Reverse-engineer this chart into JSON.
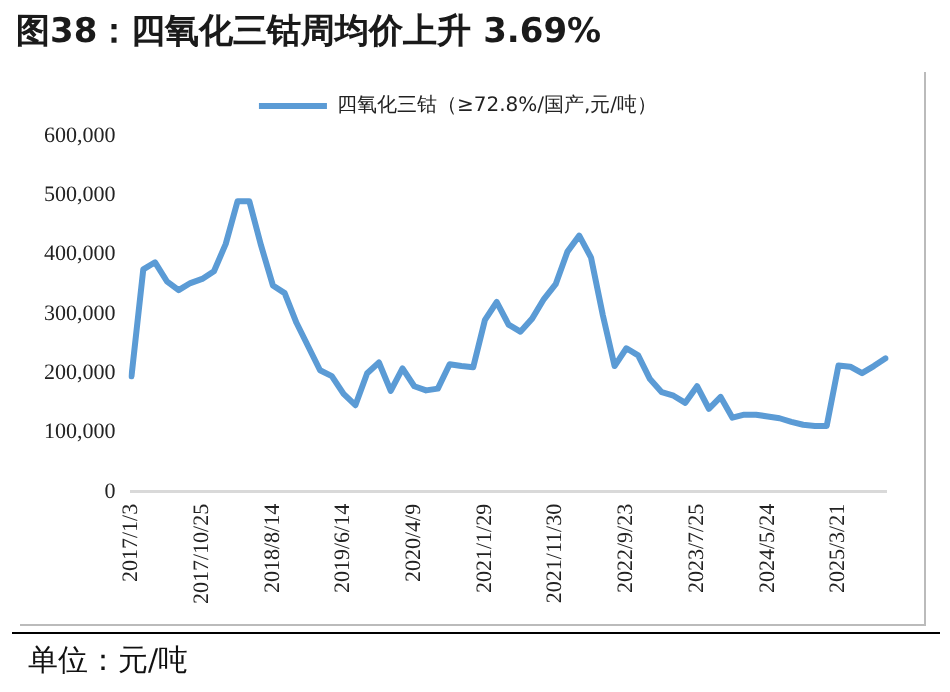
{
  "chart_data": {
    "type": "line",
    "title": "图38：四氧化三钴周均价上升 3.69%",
    "categories": [
      "2017/1/3",
      null,
      null,
      null,
      null,
      null,
      "2017/10/25",
      null,
      null,
      null,
      null,
      null,
      "2018/8/14",
      null,
      null,
      null,
      null,
      null,
      "2019/6/14",
      null,
      null,
      null,
      null,
      null,
      "2020/4/9",
      null,
      null,
      null,
      null,
      null,
      "2021/1/29",
      null,
      null,
      null,
      null,
      null,
      "2021/11/30",
      null,
      null,
      null,
      null,
      null,
      "2022/9/23",
      null,
      null,
      null,
      null,
      null,
      "2023/7/25",
      null,
      null,
      null,
      null,
      null,
      "2024/5/24",
      null,
      null,
      null,
      null,
      null,
      "2025/3/21",
      null,
      null,
      null,
      null
    ],
    "series": [
      {
        "name": "四氧化三钴（≥72.8%/国产,元/吨）",
        "color": "#5b9bd5",
        "values": [
          195000,
          375000,
          387000,
          355000,
          340000,
          352000,
          359000,
          372000,
          418000,
          490000,
          490000,
          415000,
          348000,
          335000,
          285000,
          245000,
          205000,
          195000,
          165000,
          146000,
          200000,
          218000,
          170000,
          208000,
          178000,
          171000,
          174000,
          215000,
          212000,
          210000,
          290000,
          320000,
          282000,
          270000,
          292000,
          325000,
          350000,
          405000,
          432000,
          395000,
          298000,
          212000,
          242000,
          230000,
          190000,
          168000,
          162000,
          150000,
          178000,
          140000,
          160000,
          125000,
          130000,
          130000,
          127000,
          124000,
          118000,
          113000,
          111000,
          111000,
          213000,
          211000,
          200000,
          212000,
          225000
        ]
      }
    ],
    "ylim": [
      0,
      600000
    ],
    "yticks": [
      0,
      {
        "value": 100000,
        "label": "100,000"
      },
      {
        "value": 200000,
        "label": "200,000"
      },
      {
        "value": 300000,
        "label": "300,000"
      },
      {
        "value": 400000,
        "label": "400,000"
      },
      {
        "value": 500000,
        "label": "500,000"
      },
      {
        "value": 600000,
        "label": "600,000"
      }
    ],
    "grid": false,
    "legend": "top",
    "marker": "none",
    "line_style": "solid",
    "annotations": [
      "单位：元/吨"
    ]
  }
}
